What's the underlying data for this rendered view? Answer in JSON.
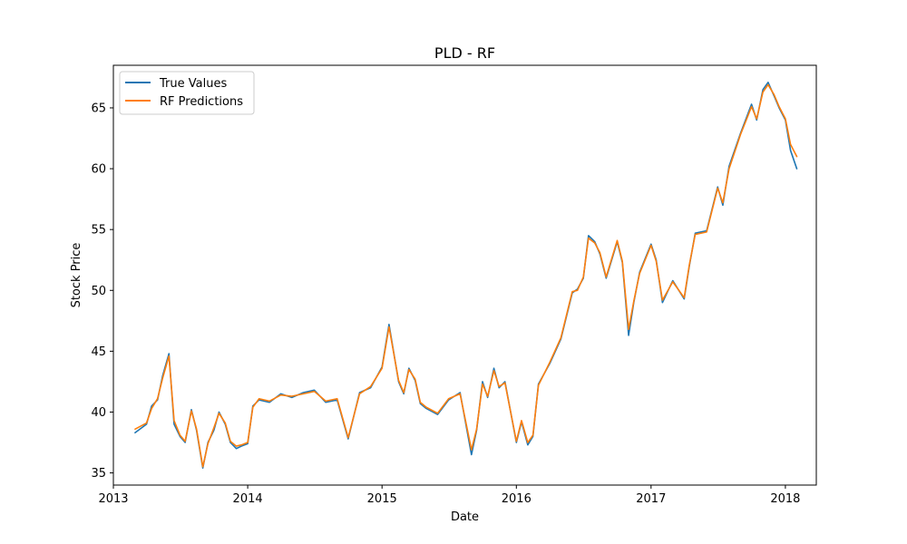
{
  "chart_data": {
    "type": "line",
    "title": "PLD - RF",
    "xlabel": "Date",
    "ylabel": "Stock Price",
    "xlim": [
      "2013-01-01",
      "2018-03-26"
    ],
    "ylim": [
      34,
      68.5
    ],
    "x_ticks": [
      "2013",
      "2014",
      "2015",
      "2016",
      "2017",
      "2018"
    ],
    "y_ticks": [
      35,
      40,
      45,
      50,
      55,
      60,
      65
    ],
    "grid": false,
    "legend_position": "top-left",
    "x": [
      "2013-03-01",
      "2013-04-01",
      "2013-04-15",
      "2013-05-01",
      "2013-05-15",
      "2013-06-01",
      "2013-06-15",
      "2013-07-01",
      "2013-07-15",
      "2013-08-01",
      "2013-08-15",
      "2013-09-01",
      "2013-09-15",
      "2013-10-01",
      "2013-10-15",
      "2013-11-01",
      "2013-11-15",
      "2013-12-01",
      "2013-12-15",
      "2014-01-01",
      "2014-01-15",
      "2014-02-01",
      "2014-03-01",
      "2014-04-01",
      "2014-05-01",
      "2014-06-01",
      "2014-07-01",
      "2014-08-01",
      "2014-09-01",
      "2014-10-01",
      "2014-11-01",
      "2014-12-01",
      "2015-01-01",
      "2015-01-20",
      "2015-02-15",
      "2015-03-01",
      "2015-03-15",
      "2015-04-01",
      "2015-04-15",
      "2015-05-01",
      "2015-06-01",
      "2015-07-01",
      "2015-08-01",
      "2015-09-01",
      "2015-09-15",
      "2015-10-01",
      "2015-10-15",
      "2015-11-01",
      "2015-11-15",
      "2015-12-01",
      "2016-01-01",
      "2016-01-15",
      "2016-02-01",
      "2016-02-15",
      "2016-03-01",
      "2016-04-01",
      "2016-05-01",
      "2016-06-01",
      "2016-06-15",
      "2016-07-01",
      "2016-07-15",
      "2016-08-01",
      "2016-08-15",
      "2016-09-01",
      "2016-10-01",
      "2016-10-15",
      "2016-11-01",
      "2016-11-15",
      "2016-12-01",
      "2017-01-01",
      "2017-01-15",
      "2017-02-01",
      "2017-03-01",
      "2017-04-01",
      "2017-04-15",
      "2017-05-01",
      "2017-06-01",
      "2017-07-01",
      "2017-07-15",
      "2017-08-01",
      "2017-09-01",
      "2017-10-01",
      "2017-10-15",
      "2017-11-01",
      "2017-11-15",
      "2017-12-01",
      "2017-12-15",
      "2018-01-01",
      "2018-01-15",
      "2018-02-01"
    ],
    "series": [
      {
        "name": "True Values",
        "color": "#1f77b4",
        "values": [
          38.3,
          39.0,
          40.5,
          41.0,
          43.0,
          44.8,
          39.0,
          38.0,
          37.5,
          40.2,
          38.5,
          35.4,
          37.5,
          38.5,
          40.0,
          39.0,
          37.5,
          37.0,
          37.2,
          37.4,
          40.5,
          41.0,
          40.8,
          41.5,
          41.2,
          41.6,
          41.8,
          40.8,
          41.0,
          37.8,
          41.6,
          42.0,
          43.7,
          47.2,
          42.5,
          41.5,
          43.6,
          42.6,
          40.7,
          40.3,
          39.8,
          41.0,
          41.6,
          36.5,
          38.5,
          42.5,
          41.2,
          43.6,
          42.0,
          42.5,
          37.5,
          39.2,
          37.3,
          38.0,
          42.3,
          44.0,
          46.0,
          49.8,
          50.1,
          51.0,
          54.5,
          54.0,
          53.0,
          51.0,
          54.0,
          52.3,
          46.3,
          49.0,
          51.5,
          53.8,
          52.5,
          49.0,
          50.8,
          49.3,
          52.0,
          54.7,
          54.9,
          58.5,
          57.0,
          60.2,
          62.9,
          65.3,
          64.0,
          66.5,
          67.1,
          66.0,
          65.0,
          64.0,
          61.5,
          60.0
        ]
      },
      {
        "name": "RF Predictions",
        "color": "#ff7f0e",
        "values": [
          38.6,
          39.1,
          40.3,
          41.1,
          42.8,
          44.6,
          39.3,
          38.1,
          37.6,
          40.1,
          38.6,
          35.5,
          37.4,
          38.7,
          39.9,
          39.1,
          37.6,
          37.2,
          37.3,
          37.5,
          40.4,
          41.1,
          40.9,
          41.4,
          41.3,
          41.5,
          41.7,
          40.9,
          41.1,
          37.9,
          41.5,
          42.1,
          43.6,
          47.0,
          42.6,
          41.6,
          43.5,
          42.7,
          40.8,
          40.4,
          39.9,
          41.1,
          41.5,
          36.9,
          38.6,
          42.3,
          41.3,
          43.4,
          42.1,
          42.4,
          37.6,
          39.3,
          37.5,
          38.1,
          42.2,
          44.1,
          46.1,
          49.9,
          50.0,
          51.1,
          54.3,
          53.9,
          53.1,
          51.1,
          54.1,
          52.4,
          46.8,
          49.1,
          51.4,
          53.7,
          52.4,
          49.2,
          50.7,
          49.4,
          52.1,
          54.6,
          54.8,
          58.4,
          57.2,
          60.0,
          62.8,
          65.1,
          64.1,
          66.3,
          66.9,
          66.1,
          65.1,
          64.1,
          62.0,
          61.0
        ]
      }
    ]
  }
}
